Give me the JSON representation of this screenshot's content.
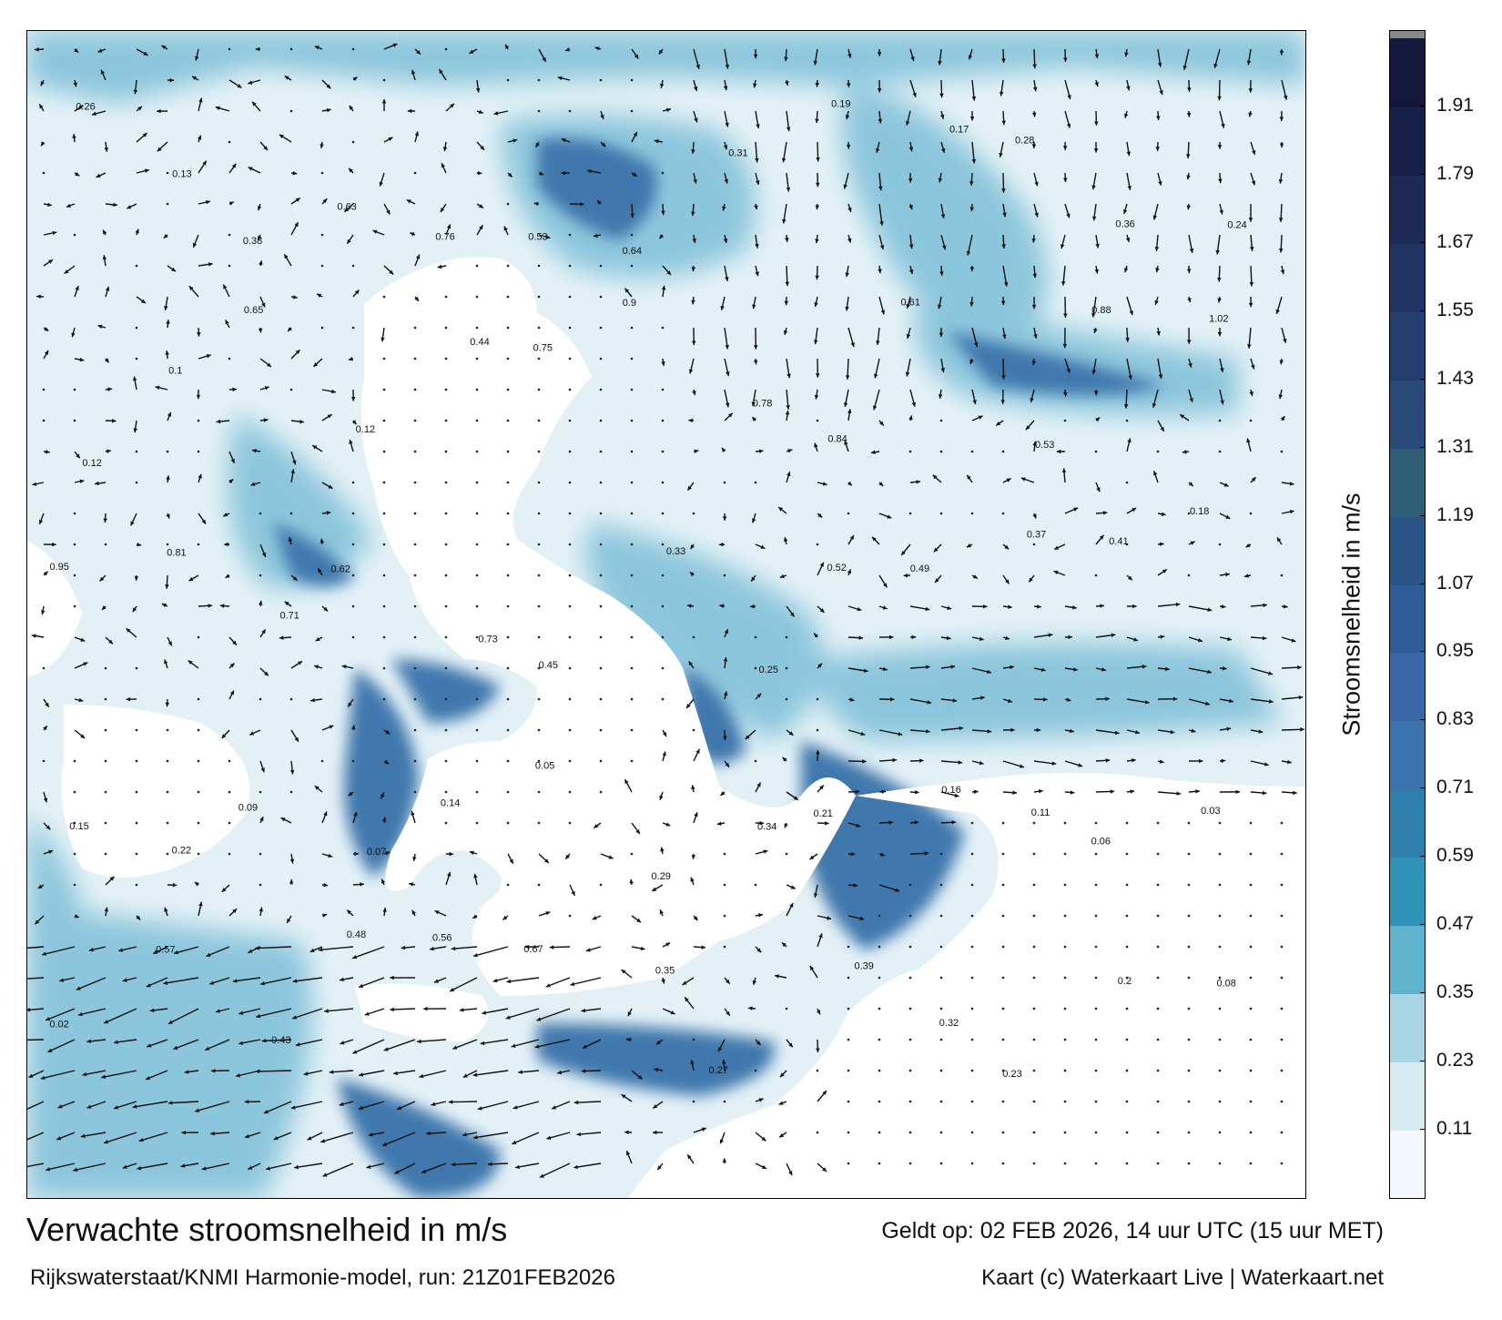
{
  "title": "Verwachte stroomsnelheid in m/s",
  "subtitle": "Rijkswaterstaat/KNMI Harmonie-model, run: 21Z01FEB2026",
  "valid_time": "Geldt op: 02 FEB 2026, 14 uur UTC (15 uur MET)",
  "credit": "Kaart (c) Waterkaart Live | Waterkaart.net",
  "colorbar": {
    "title": "Stroomsnelheid in m/s",
    "ticks": [
      "0.11",
      "0.23",
      "0.35",
      "0.47",
      "0.59",
      "0.71",
      "0.83",
      "0.95",
      "1.07",
      "1.19",
      "1.31",
      "1.43",
      "1.55",
      "1.67",
      "1.79",
      "1.91"
    ],
    "bands": [
      {
        "value": 0.05,
        "color": "#f2f8fb"
      },
      {
        "value": 0.17,
        "color": "#d6ebf2"
      },
      {
        "value": 0.29,
        "color": "#a9d6e5"
      },
      {
        "value": 0.41,
        "color": "#5fb3cd"
      },
      {
        "value": 0.53,
        "color": "#2f93b7"
      },
      {
        "value": 0.65,
        "color": "#2f7fad"
      },
      {
        "value": 0.77,
        "color": "#3b73ae"
      },
      {
        "value": 0.89,
        "color": "#3a67a7"
      },
      {
        "value": 1.01,
        "color": "#2f5d99"
      },
      {
        "value": 1.13,
        "color": "#2b5587"
      },
      {
        "value": 1.25,
        "color": "#2d5e73"
      },
      {
        "value": 1.37,
        "color": "#2a4a7a"
      },
      {
        "value": 1.49,
        "color": "#243e70"
      },
      {
        "value": 1.61,
        "color": "#203463"
      },
      {
        "value": 1.73,
        "color": "#1c2a55"
      },
      {
        "value": 1.85,
        "color": "#172046"
      },
      {
        "value": 1.97,
        "color": "#14183a"
      }
    ],
    "top_cap_color": "#888888"
  },
  "map": {
    "land_color": "#ffffff",
    "low_current_color": "#eaf5f9",
    "medium_current_color": "#6fb6d3",
    "high_current_color": "#3a6ba6",
    "labels": [
      {
        "text": "0.26"
      },
      {
        "text": "0.13"
      },
      {
        "text": "0.38"
      },
      {
        "text": "0.63"
      },
      {
        "text": "0.76"
      },
      {
        "text": "0.53"
      },
      {
        "text": "0.64"
      },
      {
        "text": "0.31"
      },
      {
        "text": "0.19"
      },
      {
        "text": "0.17"
      },
      {
        "text": "0.28"
      },
      {
        "text": "0.36"
      },
      {
        "text": "0.24"
      },
      {
        "text": "0.12"
      },
      {
        "text": "0.1"
      },
      {
        "text": "0.65"
      },
      {
        "text": "0.12"
      },
      {
        "text": "0.44"
      },
      {
        "text": "0.75"
      },
      {
        "text": "0.9"
      },
      {
        "text": "0.78"
      },
      {
        "text": "0.84"
      },
      {
        "text": "0.61"
      },
      {
        "text": "0.53"
      },
      {
        "text": "0.88"
      },
      {
        "text": "1.02"
      },
      {
        "text": "0.95"
      },
      {
        "text": "0.81"
      },
      {
        "text": "0.71"
      },
      {
        "text": "0.62"
      },
      {
        "text": "0.73"
      },
      {
        "text": "0.45"
      },
      {
        "text": "0.33"
      },
      {
        "text": "0.25"
      },
      {
        "text": "0.52"
      },
      {
        "text": "0.49"
      },
      {
        "text": "0.37"
      },
      {
        "text": "0.41"
      },
      {
        "text": "0.18"
      },
      {
        "text": "0.15"
      },
      {
        "text": "0.22"
      },
      {
        "text": "0.09"
      },
      {
        "text": "0.07"
      },
      {
        "text": "0.14"
      },
      {
        "text": "0.05"
      },
      {
        "text": "0.29"
      },
      {
        "text": "0.34"
      },
      {
        "text": "0.21"
      },
      {
        "text": "0.16"
      },
      {
        "text": "0.11"
      },
      {
        "text": "0.06"
      },
      {
        "text": "0.03"
      },
      {
        "text": "0.02"
      },
      {
        "text": "0.57"
      },
      {
        "text": "0.43"
      },
      {
        "text": "0.48"
      },
      {
        "text": "0.56"
      },
      {
        "text": "0.67"
      },
      {
        "text": "0.35"
      },
      {
        "text": "0.27"
      },
      {
        "text": "0.39"
      },
      {
        "text": "0.32"
      },
      {
        "text": "0.23"
      },
      {
        "text": "0.2"
      },
      {
        "text": "0.08"
      }
    ]
  }
}
